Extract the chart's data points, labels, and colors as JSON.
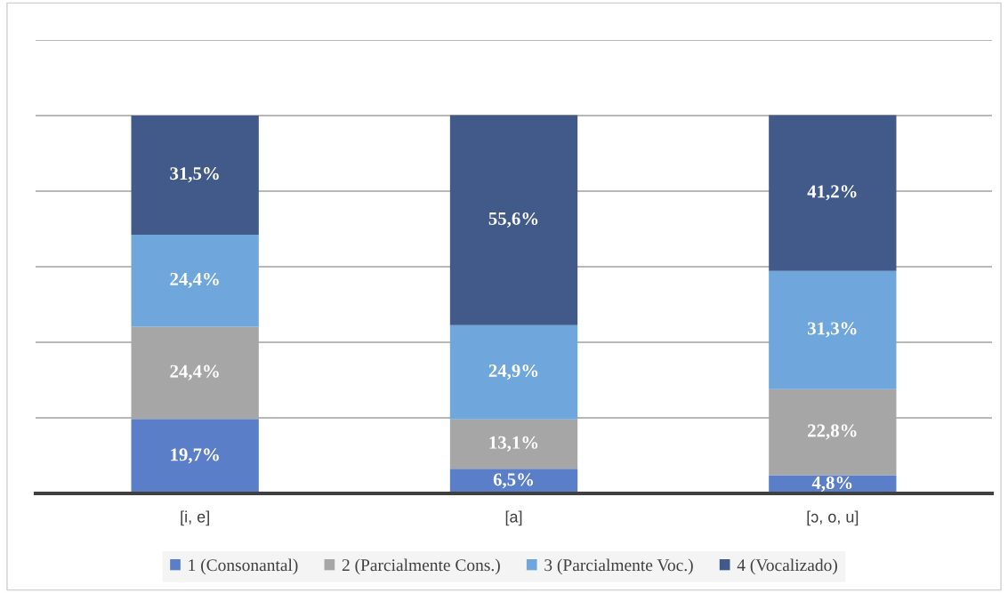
{
  "chart_data": {
    "type": "bar",
    "stacked": true,
    "categories": [
      "[i, e]",
      "[a]",
      "[ɔ, o, u]"
    ],
    "series": [
      {
        "name": "1 (Consonantal)",
        "color": "#5a7ec8",
        "values": [
          19.7,
          6.5,
          4.8
        ],
        "value_labels": [
          "19,7%",
          "6,5%",
          "4,8%"
        ]
      },
      {
        "name": "2 (Parcialmente Cons.)",
        "color": "#a6a6a6",
        "values": [
          24.4,
          13.1,
          22.8
        ],
        "value_labels": [
          "24,4%",
          "13,1%",
          "22,8%"
        ]
      },
      {
        "name": "3 (Parcialmente Voc.)",
        "color": "#6fa6db",
        "values": [
          24.4,
          24.9,
          31.3
        ],
        "value_labels": [
          "24,4%",
          "24,9%",
          "31,3%"
        ]
      },
      {
        "name": "4 (Vocalizado)",
        "color": "#425a89",
        "values": [
          31.5,
          55.6,
          41.2
        ],
        "value_labels": [
          "31,5%",
          "55,6%",
          "41,2%"
        ]
      }
    ],
    "ylim": [
      0,
      120
    ],
    "yticks": [
      {
        "value": 0,
        "label": null
      },
      {
        "value": 20,
        "label": null
      },
      {
        "value": 40,
        "label": null
      },
      {
        "value": 60,
        "label": null
      },
      {
        "value": 80,
        "label": null
      },
      {
        "value": 100,
        "label": null
      },
      {
        "value": 120,
        "label": null
      }
    ],
    "grid": "y",
    "legend": "bottom",
    "tick_labels": "x"
  }
}
